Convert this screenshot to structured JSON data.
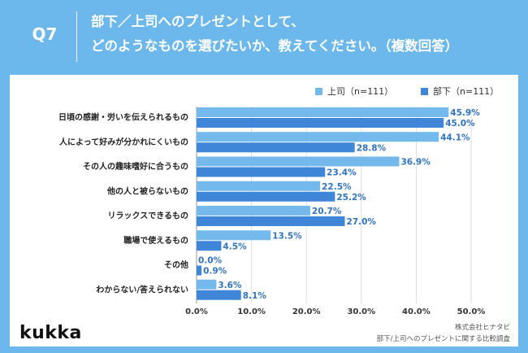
{
  "header": {
    "question_number": "Q7",
    "title_line1": "部下／上司へのプレゼントとして、",
    "title_line2": "どのようなものを選びたいか、教えてください。（複数回答）"
  },
  "colors": {
    "background": "#6cb8ec",
    "series_boss": "#74b9ec",
    "series_subordinate": "#3f86d8",
    "label_text": "#2e73c4"
  },
  "footer": {
    "logo": "kukka",
    "source_line1": "株式会社ヒナタビ",
    "source_line2": "部下/上司へのプレゼントに関する比較調査"
  },
  "chart_data": {
    "type": "bar",
    "orientation": "horizontal",
    "categories": [
      "日頃の感謝・労いを伝えられるもの",
      "人によって好みが分かれにくいもの",
      "その人の趣味嗜好に合うもの",
      "他の人と被らないもの",
      "リラックスできるもの",
      "職場で使えるもの",
      "その他",
      "わからない/答えられない"
    ],
    "series": [
      {
        "name": "上司（n=111）",
        "values": [
          45.9,
          44.1,
          36.9,
          22.5,
          20.7,
          13.5,
          0.0,
          3.6
        ]
      },
      {
        "name": "部下（n=111）",
        "values": [
          45.0,
          28.8,
          23.4,
          25.2,
          27.0,
          4.5,
          0.9,
          8.1
        ]
      }
    ],
    "value_suffix": "%",
    "xlim": [
      0,
      50
    ],
    "xticks": [
      0,
      10,
      20,
      30,
      40,
      50
    ],
    "xtick_labels": [
      "0.0%",
      "10.0%",
      "20.0%",
      "30.0%",
      "40.0%",
      "50.0%"
    ],
    "legend_position": "top-right",
    "grid": true
  }
}
